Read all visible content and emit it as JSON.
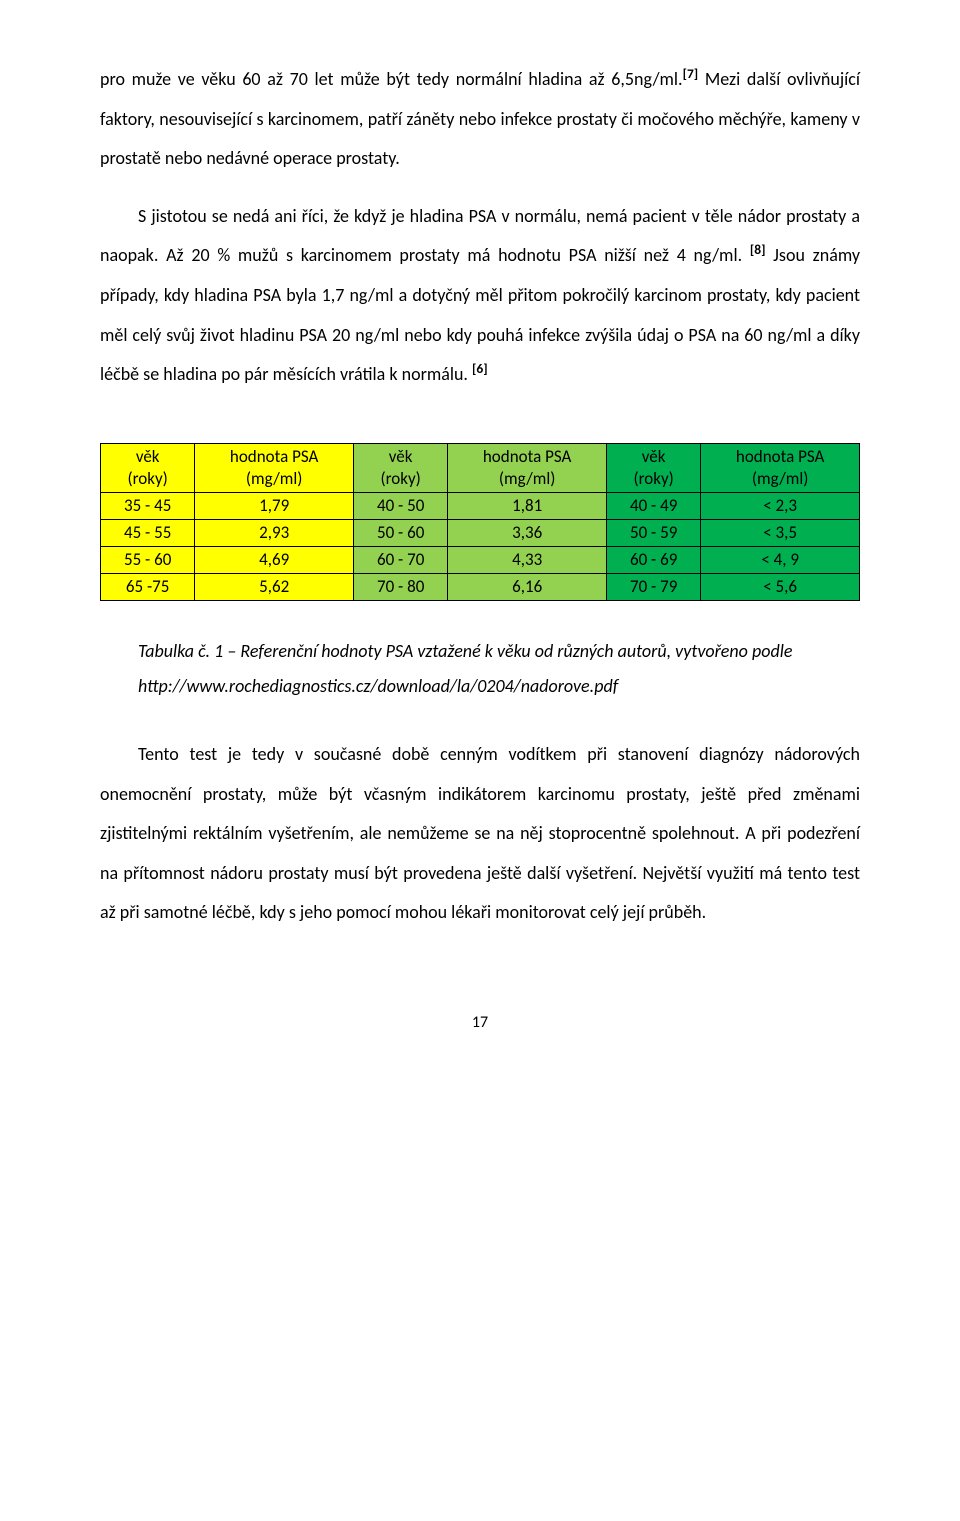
{
  "paragraphs": {
    "p1_a": "pro muže ve věku 60 až 70 let může být tedy normální hladina až 6,5ng/ml.",
    "sup1": "[7]",
    "p1_b": " Mezi další ovlivňující faktory, nesouvisející s karcinomem, patří záněty nebo infekce prostaty či močového měchýře, kameny v prostatě nebo nedávné operace prostaty.",
    "p2_a": "S jistotou se nedá ani říci, že když je hladina PSA v normálu, nemá pacient v těle nádor prostaty a naopak. Až 20 % mužů s karcinomem prostaty má hodnotu PSA nižší než 4 ng/ml. ",
    "sup2": "[8]",
    "p2_b": " Jsou známy případy, kdy hladina PSA byla 1,7 ng/ml a dotyčný měl přitom pokročilý karcinom prostaty, kdy pacient měl celý svůj život hladinu PSA 20 ng/ml nebo kdy pouhá infekce zvýšila údaj o PSA na 60 ng/ml a díky léčbě se hladina po pár měsících vrátila k normálu. ",
    "sup3": "[6]",
    "p3": "Tento test je tedy v současné době cenným vodítkem při stanovení diagnózy nádorových onemocnění prostaty, může být včasným indikátorem karcinomu prostaty, ještě před změnami zjistitelnými rektálním vyšetřením, ale nemůžeme se na něj stoprocentně spolehnout. A při podezření na přítomnost nádoru prostaty musí být provedena ještě další vyšetření. Největší využití má tento test až při samotné léčbě, kdy s jeho pomocí mohou lékaři monitorovat celý její průběh."
  },
  "table": {
    "colors": {
      "yellow": "#ffff00",
      "green_light": "#93d150",
      "green_dark": "#00b050",
      "border": "#000000"
    },
    "headers": [
      {
        "l1": "věk",
        "l2": "(roky)"
      },
      {
        "l1": "hodnota PSA",
        "l2": "(mg/ml)"
      },
      {
        "l1": "věk",
        "l2": "(roky)"
      },
      {
        "l1": "hodnota PSA",
        "l2": "(mg/ml)"
      },
      {
        "l1": "věk",
        "l2": "(roky)"
      },
      {
        "l1": "hodnota PSA",
        "l2": "(mg/ml)"
      }
    ],
    "rows": [
      [
        "35 - 45",
        "1,79",
        "40 - 50",
        "1,81",
        "40 - 49",
        "< 2,3"
      ],
      [
        "45 - 55",
        "2,93",
        "50 - 60",
        "3,36",
        "50 - 59",
        "< 3,5"
      ],
      [
        "55 - 60",
        "4,69",
        "60 - 70",
        "4,33",
        "60 - 69",
        "< 4, 9"
      ],
      [
        "65 -75",
        "5,62",
        "70 - 80",
        "6,16",
        "70 - 79",
        "< 5,6"
      ]
    ]
  },
  "caption": {
    "line1": "Tabulka č. 1 – Referenční hodnoty PSA vztažené k věku od různých autorů, vytvořeno podle",
    "line2": "http://www.rochediagnostics.cz/download/la/0204/nadorove.pdf"
  },
  "pagenum": "17"
}
